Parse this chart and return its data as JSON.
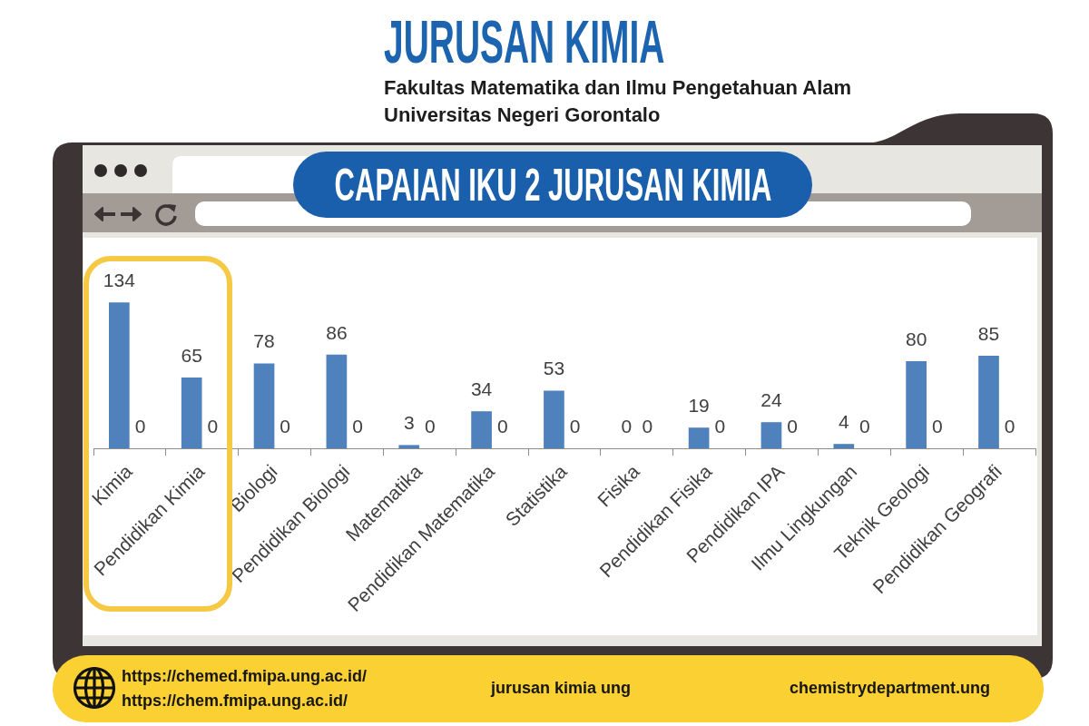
{
  "chart_data": {
    "type": "bar",
    "title": "CAPAIAN IKU 2 JURUSAN KIMIA",
    "categories": [
      "Kimia",
      "Pendidikan Kimia",
      "Biologi",
      "Pendidikan Biologi",
      "Matematika",
      "Pendidikan Matematika",
      "Statistika",
      "Fisika",
      "Pendidikan Fisika",
      "Pendidikan IPA",
      "Ilmu Lingkungan",
      "Teknik Geologi",
      "Pendidikan Geografi"
    ],
    "series": [
      {
        "color": "#4f81bd",
        "values": [
          134,
          65,
          78,
          86,
          3,
          34,
          53,
          0,
          19,
          24,
          4,
          80,
          85
        ]
      },
      {
        "color": "#c0504d",
        "values": [
          0,
          0,
          0,
          0,
          0,
          0,
          0,
          0,
          0,
          0,
          0,
          0,
          0
        ]
      }
    ],
    "data_labels": true,
    "tick_labels": "x",
    "grid": false,
    "legend": false,
    "annotations": [
      "JURUSAN KIMIA",
      "Fakultas Matematika dan Ilmu Pengetahuan Alam",
      "Universitas Negeri Gorontalo",
      "https://chemed.fmipa.ung.ac.id/",
      "https://chem.fmipa.ung.ac.id/",
      "jurusan kimia ung",
      "chemistrydepartment.ung"
    ]
  }
}
